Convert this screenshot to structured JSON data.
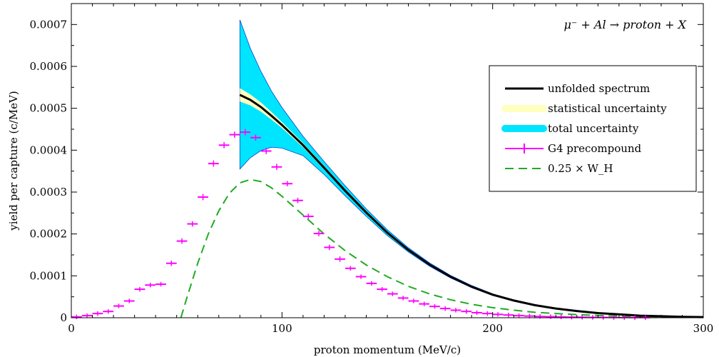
{
  "chart_data": {
    "type": "line",
    "title": "",
    "annotation": "μ⁻ + Al → proton + X",
    "xlabel": "proton momentum (MeV/c)",
    "ylabel": "yield per capture (c/MeV)",
    "xlim": [
      0,
      300
    ],
    "ylim": [
      0,
      0.00075
    ],
    "x_ticks": [
      0,
      100,
      200,
      300
    ],
    "x_tick_labels": [
      "0",
      "100",
      "200",
      "300"
    ],
    "y_ticks": [
      0,
      0.0001,
      0.0002,
      0.0003,
      0.0004,
      0.0005,
      0.0006,
      0.0007
    ],
    "y_tick_labels": [
      "0",
      "0.0001",
      "0.0002",
      "0.0003",
      "0.0004",
      "0.0005",
      "0.0006",
      "0.0007"
    ],
    "grid": false,
    "legend_position": "top-right",
    "legend": [
      {
        "label": "unfolded spectrum",
        "color": "#000000",
        "style": "line"
      },
      {
        "label": "statistical uncertainty",
        "color": "#ffffc0",
        "style": "band"
      },
      {
        "label": "total uncertainty",
        "color": "#00e5ff",
        "style": "band"
      },
      {
        "label": "G4 precompound",
        "color": "#ff00ff",
        "style": "errorbar"
      },
      {
        "label": "0.25 × W_H",
        "color": "#22aa22",
        "style": "dashed"
      }
    ],
    "series": [
      {
        "name": "unfolded spectrum",
        "color": "#000000",
        "x": [
          80,
          85,
          90,
          95,
          100,
          110,
          120,
          130,
          140,
          150,
          160,
          170,
          180,
          190,
          200,
          210,
          220,
          230,
          240,
          250,
          260,
          270,
          280,
          290,
          300
        ],
        "y": [
          0.000532,
          0.00052,
          0.000503,
          0.000482,
          0.00046,
          0.000412,
          0.000358,
          0.000303,
          0.000251,
          0.000203,
          0.000162,
          0.000127,
          9.8e-05,
          7.4e-05,
          5.5e-05,
          4.1e-05,
          3e-05,
          2.2e-05,
          1.6e-05,
          1.1e-05,
          8e-06,
          5e-06,
          3.5e-06,
          2.2e-06,
          1.5e-06
        ],
        "total_upper": [
          0.000711,
          0.000643,
          0.000588,
          0.000541,
          0.000502,
          0.000433,
          0.000373,
          0.000315,
          0.00026,
          0.00021,
          0.000167,
          0.000131,
          0.000101,
          7.7e-05,
          5.7e-05,
          4.3e-05,
          3.1e-05,
          2.3e-05,
          1.6e-05,
          1.1e-05,
          8e-06,
          5e-06,
          3.6e-06,
          2.3e-06,
          1.6e-06
        ],
        "total_lower": [
          0.000355,
          0.000382,
          0.000399,
          0.000407,
          0.000405,
          0.000387,
          0.000342,
          0.000291,
          0.000242,
          0.000196,
          0.000157,
          0.000123,
          9.5e-05,
          7.2e-05,
          5.3e-05,
          4e-05,
          2.9e-05,
          2.1e-05,
          1.5e-05,
          1e-05,
          7.5e-06,
          4.8e-06,
          3.3e-06,
          2e-06,
          1.4e-06
        ],
        "stat_upper": [
          0.000548,
          0.000533,
          0.000514,
          0.000491,
          0.000467,
          0.000417,
          0.000362,
          0.000306,
          0.000254,
          0.000205,
          0.000164,
          0.000129,
          9.9e-05,
          7.5e-05,
          5.6e-05,
          4.2e-05,
          3.05e-05,
          2.25e-05,
          1.62e-05,
          1.12e-05,
          8.1e-06,
          5.1e-06,
          3.5e-06,
          2.2e-06,
          1.5e-06
        ],
        "stat_lower": [
          0.000516,
          0.000507,
          0.000492,
          0.000473,
          0.000453,
          0.000407,
          0.000354,
          0.0003,
          0.000248,
          0.000201,
          0.00016,
          0.000125,
          9.7e-05,
          7.3e-05,
          5.4e-05,
          4e-05,
          2.95e-05,
          2.15e-05,
          1.58e-05,
          1.08e-05,
          7.9e-06,
          4.9e-06,
          3.5e-06,
          2.2e-06,
          1.5e-06
        ]
      },
      {
        "name": "G4 precompound",
        "color": "#ff00ff",
        "bin_width": 5,
        "x": [
          2.5,
          7.5,
          12.5,
          17.5,
          22.5,
          27.5,
          32.5,
          37.5,
          42.5,
          47.5,
          52.5,
          57.5,
          62.5,
          67.5,
          72.5,
          77.5,
          82.5,
          87.5,
          92.5,
          97.5,
          102.5,
          107.5,
          112.5,
          117.5,
          122.5,
          127.5,
          132.5,
          137.5,
          142.5,
          147.5,
          152.5,
          157.5,
          162.5,
          167.5,
          172.5,
          177.5,
          182.5,
          187.5,
          192.5,
          197.5,
          202.5,
          207.5,
          212.5,
          217.5,
          222.5,
          227.5,
          232.5,
          237.5,
          242.5,
          247.5,
          252.5,
          257.5,
          262.5,
          267.5,
          272.5
        ],
        "y": [
          2e-06,
          5e-06,
          1e-05,
          1.5e-05,
          2.8e-05,
          4e-05,
          6.8e-05,
          7.8e-05,
          8e-05,
          0.00013,
          0.000183,
          0.000224,
          0.000288,
          0.000368,
          0.000412,
          0.000437,
          0.000443,
          0.00043,
          0.000398,
          0.00036,
          0.00032,
          0.00028,
          0.000242,
          0.000201,
          0.000168,
          0.00014,
          0.000118,
          9.8e-05,
          8.2e-05,
          6.8e-05,
          5.7e-05,
          4.7e-05,
          4e-05,
          3.3e-05,
          2.7e-05,
          2.2e-05,
          1.8e-05,
          1.5e-05,
          1.2e-05,
          1e-05,
          8e-06,
          6.5e-06,
          5e-06,
          4e-06,
          3e-06,
          2.5e-06,
          2e-06,
          1.5e-06,
          1.2e-06,
          1e-06,
          8e-07,
          6e-07,
          5e-07,
          4e-07,
          3e-07
        ],
        "err": [
          2e-06,
          2e-06,
          2e-06,
          2e-06,
          2e-06,
          2e-06,
          2e-06,
          2e-06,
          2e-06,
          3e-06,
          3e-06,
          3e-06,
          4e-06,
          4e-06,
          4e-06,
          4e-06,
          4e-06,
          4e-06,
          4e-06,
          4e-06,
          3e-06,
          3e-06,
          3e-06,
          3e-06,
          3e-06,
          3e-06,
          2e-06,
          2e-06,
          2e-06,
          2e-06,
          2e-06,
          2e-06,
          2e-06,
          2e-06,
          2e-06,
          2e-06,
          2e-06,
          2e-06,
          2e-06,
          2e-06,
          2e-06,
          2e-06,
          2e-06,
          2e-06,
          2e-06,
          2e-06,
          2e-06,
          2e-06,
          2e-06,
          2e-06,
          2e-06,
          2e-06,
          2e-06,
          2e-06,
          2e-06
        ]
      },
      {
        "name": "0.25 × W_H",
        "color": "#22aa22",
        "style": "dashed",
        "x": [
          52,
          55,
          60,
          65,
          70,
          75,
          80,
          85,
          90,
          95,
          100,
          110,
          120,
          130,
          140,
          150,
          160,
          170,
          180,
          190,
          200,
          210,
          220,
          230,
          240,
          250,
          260,
          270,
          280,
          290,
          300
        ],
        "y": [
          0.0,
          5e-05,
          0.00013,
          0.0002,
          0.000255,
          0.000297,
          0.000322,
          0.00033,
          0.000325,
          0.00031,
          0.00029,
          0.000245,
          0.0002,
          0.00016,
          0.000126,
          9.8e-05,
          7.5e-05,
          5.7e-05,
          4.3e-05,
          3.2e-05,
          2.4e-05,
          1.8e-05,
          1.3e-05,
          1e-05,
          7.5e-06,
          5.5e-06,
          4e-06,
          3e-06,
          2.2e-06,
          1.6e-06,
          1.2e-06
        ]
      }
    ]
  }
}
